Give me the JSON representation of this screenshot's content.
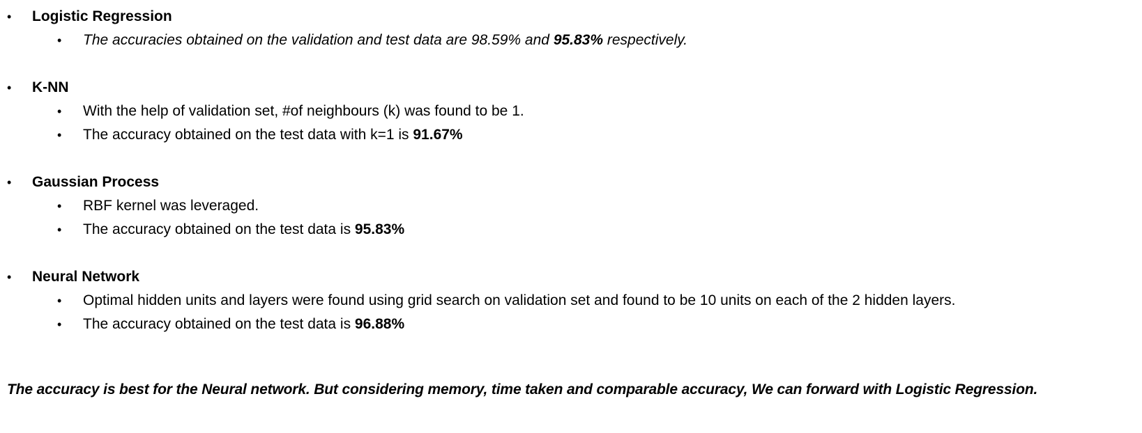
{
  "bullet_glyph": "•",
  "sections": [
    {
      "heading": "Logistic Regression",
      "items": [
        {
          "pre": "The accuracies obtained on the validation and test data are 98.59% and ",
          "bold": "95.83%",
          "post": " respectively.",
          "italic": true
        }
      ]
    },
    {
      "heading": "K-NN",
      "items": [
        {
          "pre": "With the help of validation set, #of neighbours (k) was found to be 1.",
          "bold": "",
          "post": ""
        },
        {
          "pre": "The accuracy obtained on the test data with k=1 is ",
          "bold": "91.67%",
          "post": ""
        }
      ]
    },
    {
      "heading": "Gaussian Process",
      "items": [
        {
          "pre": "RBF kernel was leveraged.",
          "bold": "",
          "post": ""
        },
        {
          "pre": "The accuracy obtained on the test data is ",
          "bold": "95.83%",
          "post": ""
        }
      ]
    },
    {
      "heading": "Neural Network",
      "items": [
        {
          "pre": "Optimal hidden units and layers were found using grid search on validation set and found to be 10 units on each of the 2 hidden layers.",
          "bold": "",
          "post": ""
        },
        {
          "pre": "The accuracy obtained on the test data is ",
          "bold": "96.88%",
          "post": ""
        }
      ]
    }
  ],
  "conclusion": "The accuracy is best for the Neural network. But considering memory, time taken and comparable accuracy, We can forward with Logistic Regression."
}
